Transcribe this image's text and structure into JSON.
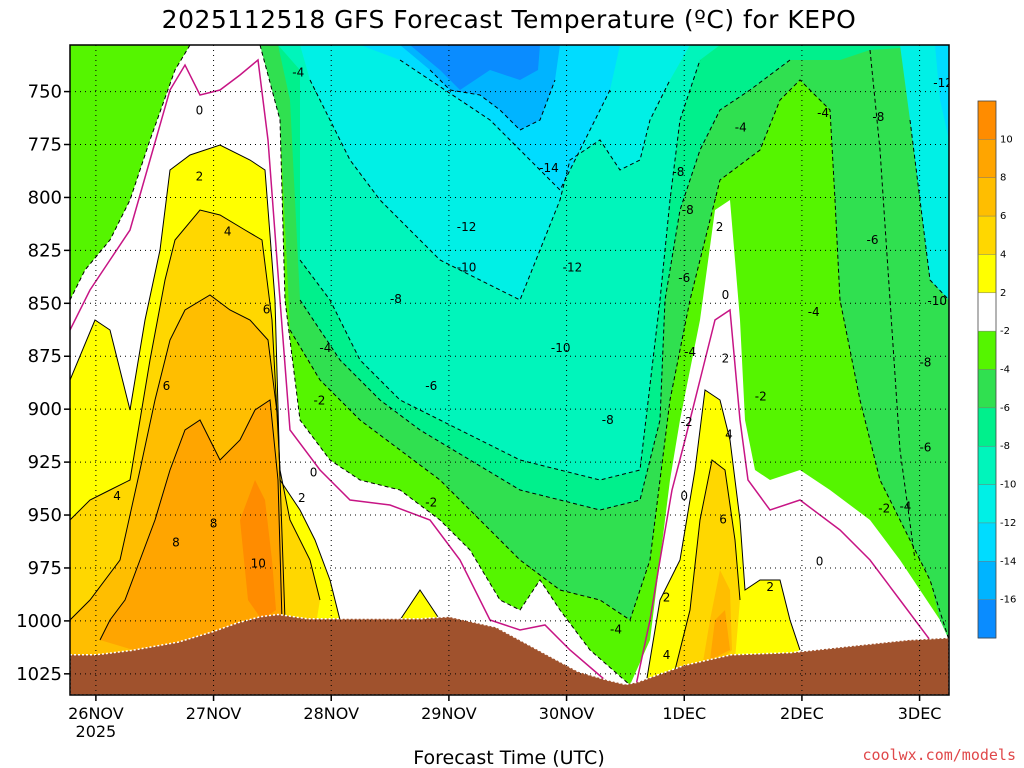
{
  "chart_data": {
    "type": "heatmap",
    "title": "2025112518 GFS Forecast Temperature (ºC) for KEPO",
    "xlabel": "Forecast Time (UTC)",
    "ylabel": "",
    "x_ticks": [
      {
        "label": "26NOV",
        "sub": "2025",
        "day": 0
      },
      {
        "label": "27NOV",
        "day": 1
      },
      {
        "label": "28NOV",
        "day": 2
      },
      {
        "label": "29NOV",
        "day": 3
      },
      {
        "label": "30NOV",
        "day": 4
      },
      {
        "label": "1DEC",
        "day": 5
      },
      {
        "label": "2DEC",
        "day": 6
      },
      {
        "label": "3DEC",
        "day": 7
      }
    ],
    "xlim": [
      -0.22,
      7.25
    ],
    "y_ticks": [
      750,
      775,
      800,
      825,
      850,
      875,
      900,
      925,
      950,
      975,
      1000,
      1025
    ],
    "ylim": [
      1035,
      728
    ],
    "grid": true,
    "colorbar": {
      "labels": [
        "10",
        "8",
        "6",
        "4",
        "2",
        "-2",
        "-4",
        "-6",
        "-8",
        "-10",
        "-12",
        "-14",
        "-16"
      ],
      "bins": [
        {
          "lo": 10,
          "hi": 12,
          "color": "#ff8c00"
        },
        {
          "lo": 8,
          "hi": 10,
          "color": "#ffa500"
        },
        {
          "lo": 6,
          "hi": 8,
          "color": "#ffbe00"
        },
        {
          "lo": 4,
          "hi": 6,
          "color": "#ffd700"
        },
        {
          "lo": 2,
          "hi": 4,
          "color": "#ffff00"
        },
        {
          "lo": -2,
          "hi": 2,
          "color": "#ffffff"
        },
        {
          "lo": -4,
          "hi": -2,
          "color": "#55f500"
        },
        {
          "lo": -6,
          "hi": -4,
          "color": "#30e050"
        },
        {
          "lo": -8,
          "hi": -6,
          "color": "#00f08c"
        },
        {
          "lo": -10,
          "hi": -8,
          "color": "#00f5bb"
        },
        {
          "lo": -12,
          "hi": -10,
          "color": "#00f0e6"
        },
        {
          "lo": -14,
          "hi": -12,
          "color": "#00dcff"
        },
        {
          "lo": -16,
          "hi": -14,
          "color": "#00b4ff"
        },
        {
          "lo": -18,
          "hi": -16,
          "color": "#0a8cff"
        }
      ]
    },
    "contour_labels": [
      {
        "text": "0",
        "day": 0.88,
        "p": 759
      },
      {
        "text": "2",
        "day": 0.88,
        "p": 790
      },
      {
        "text": "4",
        "day": 1.12,
        "p": 816
      },
      {
        "text": "6",
        "day": 1.45,
        "p": 853
      },
      {
        "text": "6",
        "day": 0.6,
        "p": 889
      },
      {
        "text": "4",
        "day": 0.18,
        "p": 941
      },
      {
        "text": "8",
        "day": 0.68,
        "p": 963
      },
      {
        "text": "8",
        "day": 1.0,
        "p": 954
      },
      {
        "text": "10",
        "day": 1.38,
        "p": 973
      },
      {
        "text": "-4",
        "day": 1.72,
        "p": 741
      },
      {
        "text": "-4",
        "day": 1.95,
        "p": 871
      },
      {
        "text": "-2",
        "day": 1.9,
        "p": 896
      },
      {
        "text": "0",
        "day": 1.85,
        "p": 930
      },
      {
        "text": "2",
        "day": 1.75,
        "p": 942
      },
      {
        "text": "-2",
        "day": 2.85,
        "p": 944
      },
      {
        "text": "-6",
        "day": 2.85,
        "p": 889
      },
      {
        "text": "-8",
        "day": 2.55,
        "p": 848
      },
      {
        "text": "-10",
        "day": 3.15,
        "p": 833
      },
      {
        "text": "-12",
        "day": 3.15,
        "p": 814
      },
      {
        "text": "-14",
        "day": 3.85,
        "p": 786
      },
      {
        "text": "-12",
        "day": 4.05,
        "p": 833
      },
      {
        "text": "-10",
        "day": 3.95,
        "p": 871
      },
      {
        "text": "-8",
        "day": 4.35,
        "p": 905
      },
      {
        "text": "-4",
        "day": 4.42,
        "p": 1004
      },
      {
        "text": "-8",
        "day": 4.95,
        "p": 788
      },
      {
        "text": "-8",
        "day": 5.03,
        "p": 806
      },
      {
        "text": "-6",
        "day": 5.0,
        "p": 838
      },
      {
        "text": "-4",
        "day": 5.05,
        "p": 873
      },
      {
        "text": "-2",
        "day": 5.02,
        "p": 906
      },
      {
        "text": "0",
        "day": 5.0,
        "p": 941
      },
      {
        "text": "2",
        "day": 5.3,
        "p": 814
      },
      {
        "text": "0",
        "day": 5.35,
        "p": 846
      },
      {
        "text": "2",
        "day": 5.35,
        "p": 876
      },
      {
        "text": "4",
        "day": 5.38,
        "p": 912
      },
      {
        "text": "6",
        "day": 5.33,
        "p": 952
      },
      {
        "text": "2",
        "day": 4.85,
        "p": 989
      },
      {
        "text": "4",
        "day": 4.85,
        "p": 1016
      },
      {
        "text": "2",
        "day": 5.73,
        "p": 984
      },
      {
        "text": "-4",
        "day": 5.48,
        "p": 767
      },
      {
        "text": "-2",
        "day": 5.65,
        "p": 894
      },
      {
        "text": "0",
        "day": 6.15,
        "p": 972
      },
      {
        "text": "-4",
        "day": 6.18,
        "p": 760
      },
      {
        "text": "-4",
        "day": 6.1,
        "p": 854
      },
      {
        "text": "-8",
        "day": 6.65,
        "p": 762
      },
      {
        "text": "-6",
        "day": 6.6,
        "p": 820
      },
      {
        "text": "-8",
        "day": 7.05,
        "p": 878
      },
      {
        "text": "-6",
        "day": 7.05,
        "p": 918
      },
      {
        "text": "-10",
        "day": 7.15,
        "p": 849
      },
      {
        "text": "-12",
        "day": 7.2,
        "p": 746
      },
      {
        "text": "-2",
        "day": 6.7,
        "p": 947
      },
      {
        "text": "-4",
        "day": 6.88,
        "p": 946
      }
    ],
    "terrain": {
      "color": "#a0522d",
      "points": [
        [
          -0.22,
          1016
        ],
        [
          0.0,
          1016
        ],
        [
          0.3,
          1014
        ],
        [
          0.7,
          1010
        ],
        [
          1.0,
          1005
        ],
        [
          1.2,
          1001
        ],
        [
          1.4,
          998
        ],
        [
          1.55,
          997
        ],
        [
          1.8,
          999
        ],
        [
          2.3,
          999
        ],
        [
          2.75,
          999
        ],
        [
          3.0,
          998
        ],
        [
          3.4,
          1003
        ],
        [
          3.8,
          1015
        ],
        [
          4.1,
          1024
        ],
        [
          4.35,
          1028
        ],
        [
          4.5,
          1030
        ],
        [
          4.6,
          1029
        ],
        [
          4.8,
          1025
        ],
        [
          5.0,
          1021
        ],
        [
          5.4,
          1016
        ],
        [
          5.9,
          1015
        ],
        [
          6.4,
          1012
        ],
        [
          6.9,
          1009
        ],
        [
          7.25,
          1008
        ]
      ]
    }
  },
  "credit": "coolwx.com/models"
}
